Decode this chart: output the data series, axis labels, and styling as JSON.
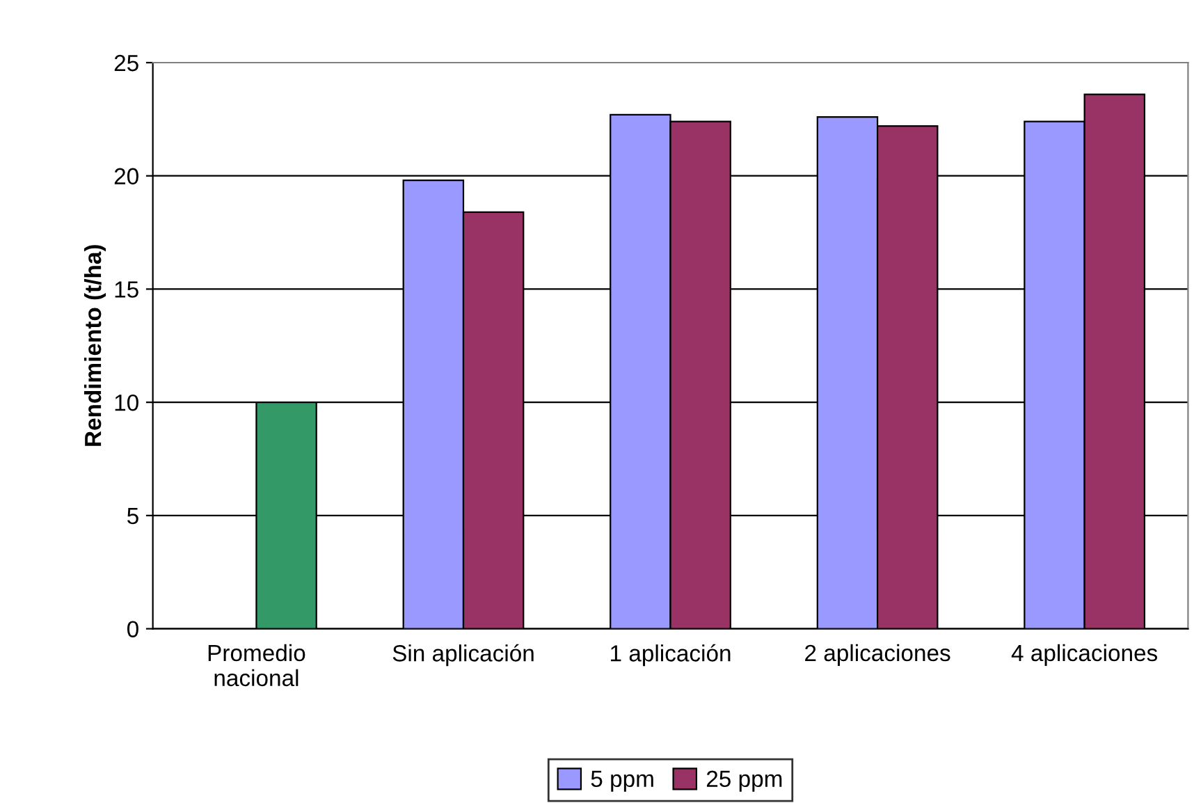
{
  "chart_data": {
    "type": "bar",
    "ylabel": "Rendimiento (t/ha)",
    "categories": [
      "Promedio\nnacional",
      "Sin aplicación",
      "1 aplicación",
      "2 aplicaciones",
      "4 aplicaciones"
    ],
    "series": [
      {
        "name": "5 ppm",
        "color": "#9999ff",
        "values": [
          null,
          19.8,
          22.7,
          22.6,
          22.4
        ]
      },
      {
        "name": "25 ppm",
        "color": "#993366",
        "colors": [
          "#339966",
          "#993366",
          "#993366",
          "#993366",
          "#993366"
        ],
        "values": [
          10,
          18.4,
          22.4,
          22.2,
          23.6
        ]
      }
    ],
    "ylim": [
      0,
      25
    ],
    "yticks": [
      0,
      5,
      10,
      15,
      20,
      25
    ],
    "grid": "y",
    "legend": "bottom"
  }
}
